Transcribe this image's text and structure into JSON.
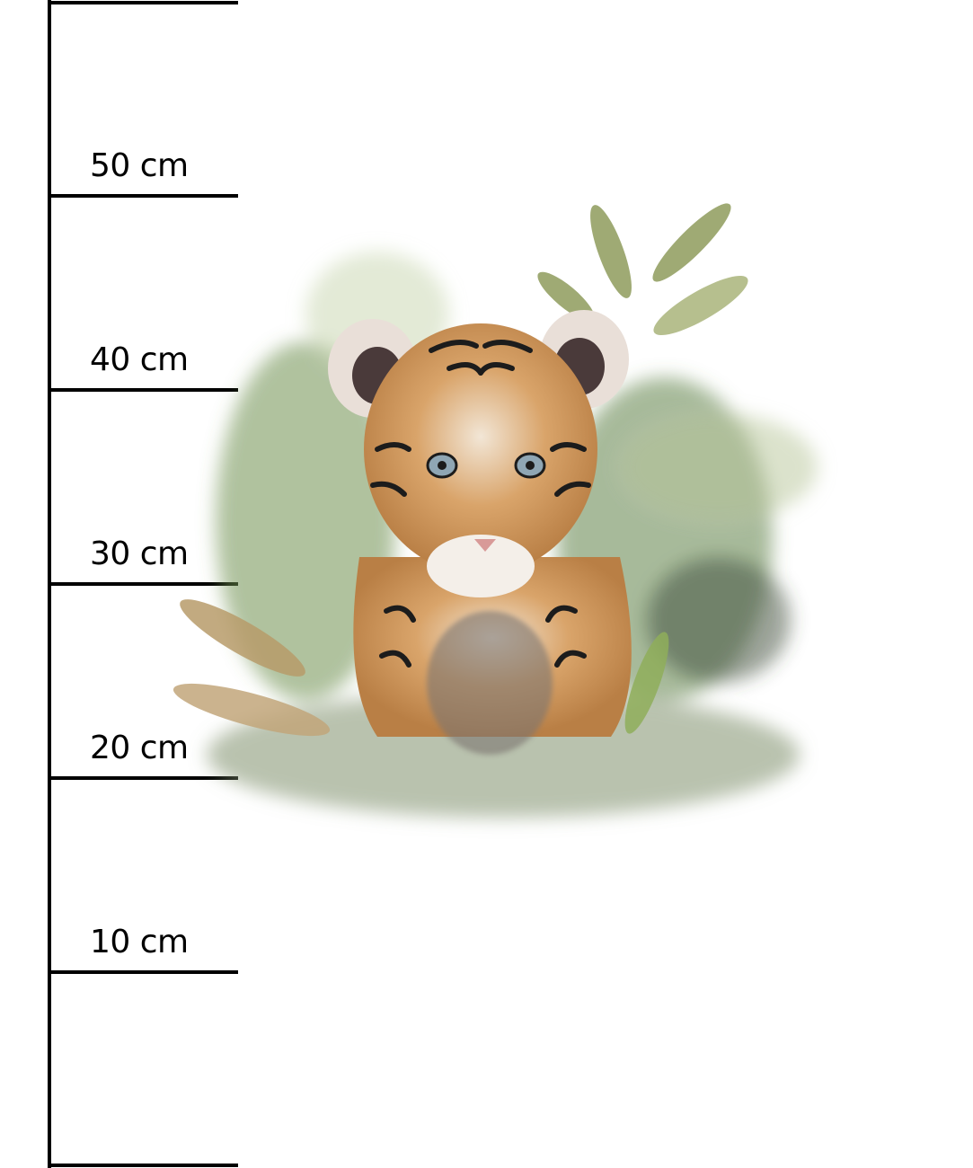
{
  "ruler": {
    "unit": "cm",
    "labels": [
      "50 cm",
      "40 cm",
      "30 cm",
      "20 cm",
      "10 cm"
    ]
  },
  "illustration": {
    "subject": "tiger-cub",
    "colors": {
      "foliage": "#6f8f4e",
      "fur": "#d9a46a",
      "stripes": "#1c1c1c",
      "eyes": "#8fa6b4"
    }
  }
}
